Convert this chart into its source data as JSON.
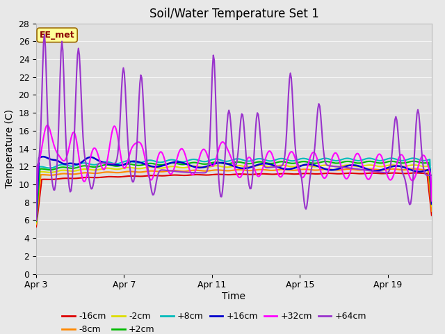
{
  "title": "Soil/Water Temperature Set 1",
  "xlabel": "Time",
  "ylabel": "Temperature (C)",
  "ylim": [
    0,
    28
  ],
  "yticks": [
    0,
    2,
    4,
    6,
    8,
    10,
    12,
    14,
    16,
    18,
    20,
    22,
    24,
    26,
    28
  ],
  "x_start_day": 3,
  "x_duration": 18,
  "x_tick_positions": [
    3,
    7,
    11,
    15,
    19
  ],
  "x_tick_labels": [
    "Apr 3",
    "Apr 7",
    "Apr 11",
    "Apr 15",
    "Apr 19"
  ],
  "fig_bg_color": "#e8e8e8",
  "plot_bg_color": "#e0e0e0",
  "grid_color": "#f5f5f5",
  "annotation_text": "EE_met",
  "annotation_bg": "#ffff99",
  "annotation_border": "#8b0000",
  "series": [
    {
      "label": "-16cm",
      "color": "#dd0000",
      "lw": 1.5
    },
    {
      "label": "-8cm",
      "color": "#ff8800",
      "lw": 1.5
    },
    {
      "label": "-2cm",
      "color": "#dddd00",
      "lw": 1.5
    },
    {
      "label": "+2cm",
      "color": "#00bb00",
      "lw": 1.5
    },
    {
      "label": "+8cm",
      "color": "#00bbbb",
      "lw": 1.5
    },
    {
      "label": "+16cm",
      "color": "#0000cc",
      "lw": 1.8
    },
    {
      "label": "+32cm",
      "color": "#ff00ff",
      "lw": 1.5
    },
    {
      "label": "+64cm",
      "color": "#9933cc",
      "lw": 1.5
    }
  ],
  "title_fontsize": 12,
  "axis_fontsize": 10,
  "tick_fontsize": 9,
  "legend_fontsize": 9
}
